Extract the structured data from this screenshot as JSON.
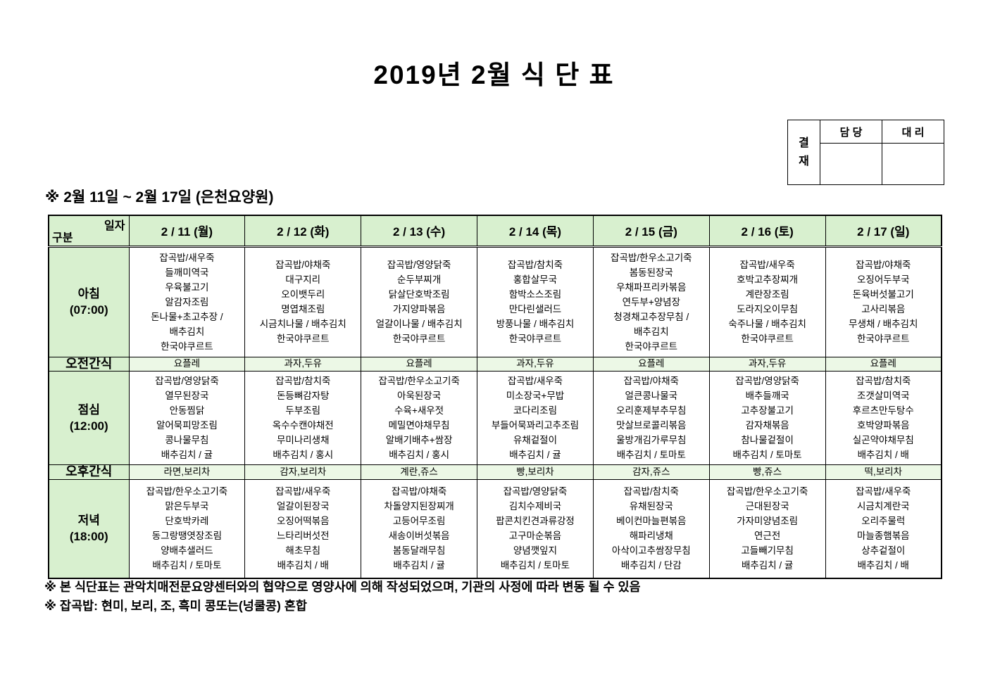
{
  "title": "2019년  2월  식  단  표",
  "approval": {
    "stamp": "결재",
    "col1": "담 당",
    "col2": "대 리"
  },
  "subtitle": "※  2월  11일  ~  2월  17일  (은천요양원)",
  "table": {
    "corner": {
      "top": "일자",
      "bottom": "구분"
    },
    "days": [
      "2 / 11 (월)",
      "2 / 12 (화)",
      "2 / 13 (수)",
      "2 / 14 (목)",
      "2 / 15 (금)",
      "2 / 16 (토)",
      "2 / 17 (일)"
    ],
    "rows": [
      {
        "type": "meal",
        "label": "아침",
        "time": "(07:00)",
        "cells": [
          [
            "잡곡밥/새우죽",
            "들깨미역국",
            "우육불고기",
            "알감자조림",
            "돈나물+초고추장 /",
            "배추김치",
            "한국야쿠르트"
          ],
          [
            "잡곡밥/야채죽",
            "대구지리",
            "오이뱃두리",
            "명엽채조림",
            "시금치나물 / 배추김치",
            "한국야쿠르트"
          ],
          [
            "잡곡밥/영양닭죽",
            "순두부찌개",
            "닭살단호박조림",
            "가지양파볶음",
            "얼갈이나물 / 배추김치",
            "한국야쿠르트"
          ],
          [
            "잡곡밥/참치죽",
            "홍합살무국",
            "함박소스조림",
            "만다린샐러드",
            "방풍나물 / 배추김치",
            "한국야쿠르트"
          ],
          [
            "잡곡밥/한우소고기죽",
            "봄동된장국",
            "우채파프리카볶음",
            "연두부+양념장",
            "청경채고추장무침 /",
            "배추김치",
            "한국야쿠르트"
          ],
          [
            "잡곡밥/새우죽",
            "호박고추장찌개",
            "계란장조림",
            "도라지오이무침",
            "숙주나물 / 배추김치",
            "한국야쿠르트"
          ],
          [
            "잡곡밥/야채죽",
            "오징어두부국",
            "돈육버섯불고기",
            "고사리볶음",
            "무생채 / 배추김치",
            "한국야쿠르트"
          ]
        ]
      },
      {
        "type": "snack",
        "label": "오전간식",
        "cells": [
          "요플레",
          "과자,두유",
          "요플레",
          "과자,두유",
          "요플레",
          "과자,두유",
          "요플레"
        ]
      },
      {
        "type": "meal",
        "label": "점심",
        "time": "(12:00)",
        "cells": [
          [
            "잡곡밥/영양닭죽",
            "열무된장국",
            "안동찜닭",
            "알어묵피망조림",
            "콩나물무침",
            "배추김치 / 귤"
          ],
          [
            "잡곡밥/참치죽",
            "돈등뼈감자탕",
            "두부조림",
            "옥수수캔야채전",
            "무미나리생채",
            "배추김치 / 홍시"
          ],
          [
            "잡곡밥/한우소고기죽",
            "아욱된장국",
            "수육+새우젓",
            "메밀면야채무침",
            "알배기배추+쌈장",
            "배추김치 / 홍시"
          ],
          [
            "잡곡밥/새우죽",
            "미소장국+무밥",
            "코다리조림",
            "부들어묵꽈리고추조림",
            "유채겉절이",
            "배추김치 / 귤"
          ],
          [
            "잡곡밥/야채죽",
            "얼큰콩나물국",
            "오리훈제부추무침",
            "맛살브로콜리볶음",
            "울방개김가루무침",
            "배추김치 / 토마토"
          ],
          [
            "잡곡밥/영양닭죽",
            "배추들깨국",
            "고추장불고기",
            "감자채볶음",
            "참나물겉절이",
            "배추김치 / 토마토"
          ],
          [
            "잡곡밥/참치죽",
            "조갯살미역국",
            "후르츠만두탕수",
            "호박양파볶음",
            "실곤약야채무침",
            "배추김치 / 배"
          ]
        ]
      },
      {
        "type": "snack",
        "label": "오후간식",
        "cells": [
          "라면,보리차",
          "감자,보리차",
          "계란,쥬스",
          "빵,보리차",
          "감자,쥬스",
          "빵,쥬스",
          "떡,보리차"
        ]
      },
      {
        "type": "meal",
        "label": "저녁",
        "time": "(18:00)",
        "cells": [
          [
            "잡곡밥/한우소고기죽",
            "맑은두부국",
            "단호박카레",
            "동그랑땡엿장조림",
            "양배추샐러드",
            "배추김치 / 토마토"
          ],
          [
            "잡곡밥/새우죽",
            "얼갈이된장국",
            "오징어떡볶음",
            "느타리버섯전",
            "해초무침",
            "배추김치 / 배"
          ],
          [
            "잡곡밥/야채죽",
            "차돌양지된장찌개",
            "고등어무조림",
            "새송이버섯볶음",
            "봄동달래무침",
            "배추김치 / 귤"
          ],
          [
            "잡곡밥/영양닭죽",
            "김치수제비국",
            "팝콘치킨견과류강정",
            "고구마순볶음",
            "양념깻잎지",
            "배추김치 / 토마토"
          ],
          [
            "잡곡밥/참치죽",
            "유채된장국",
            "베이컨마늘편볶음",
            "해파리냉채",
            "아삭이고추쌈장무침",
            "배추김치 / 단감"
          ],
          [
            "잡곡밥/한우소고기죽",
            "근대된장국",
            "가자미양념조림",
            "연근전",
            "고들빼기무침",
            "배추김치 / 귤"
          ],
          [
            "잡곡밥/새우죽",
            "시금치계란국",
            "오리주물럭",
            "마늘종햄볶음",
            "상추겉절이",
            "배추김치 / 배"
          ]
        ]
      }
    ]
  },
  "notes": [
    "※  본  식단표는  관악치매전문요양센터와의  협약으로  영양사에  의해  작성되었으며,  기관의  사정에  따라  변동  될  수  있음",
    "※  잡곡밥:  현미,  보리,  조,  흑미  콩또는(넝쿨콩)  혼합"
  ],
  "colors": {
    "header_green": "#d8f0cf",
    "snack_green": "#ecf8e6",
    "border": "#000000"
  }
}
